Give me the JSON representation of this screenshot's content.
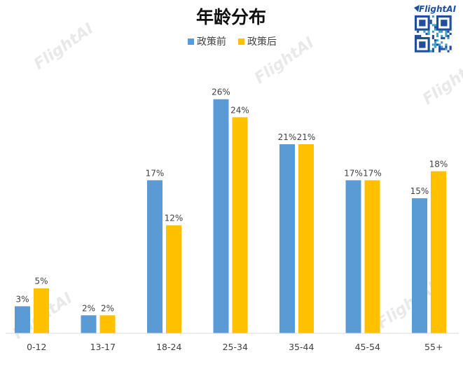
{
  "brand": {
    "logo_text": "FlightAI",
    "watermark_text": "FlightAI"
  },
  "chart_data": {
    "type": "bar",
    "title": "年龄分布",
    "categories": [
      "0-12",
      "13-17",
      "18-24",
      "25-34",
      "35-44",
      "45-54",
      "55+"
    ],
    "series": [
      {
        "name": "政策前",
        "color": "#5b9bd5",
        "values": [
          3,
          2,
          17,
          26,
          21,
          17,
          15
        ]
      },
      {
        "name": "政策后",
        "color": "#ffc000",
        "values": [
          5,
          2,
          12,
          24,
          21,
          17,
          18
        ]
      }
    ],
    "value_suffix": "%",
    "ylim": [
      0,
      28
    ],
    "grid": false,
    "legend_position": "top-center"
  }
}
